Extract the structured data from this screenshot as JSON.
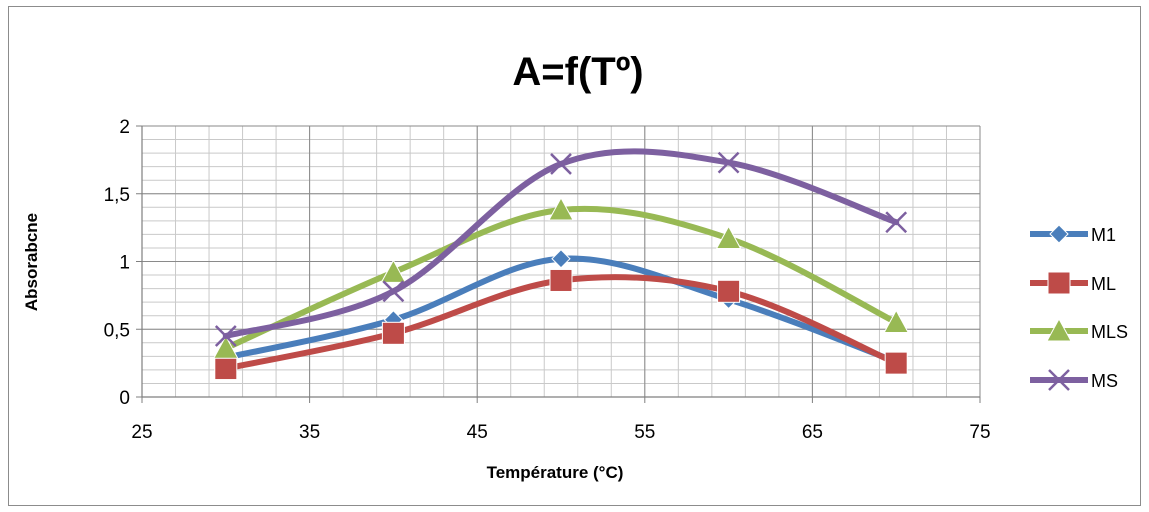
{
  "chart_data": {
    "type": "line",
    "title": "A=f(Tº)",
    "xlabel": "Température (°C)",
    "ylabel": "Absorabcne",
    "xlim": [
      25,
      75
    ],
    "ylim": [
      0,
      2
    ],
    "x_major_ticks": [
      25,
      35,
      45,
      55,
      65,
      75
    ],
    "x_tick_labels": [
      "25",
      "35",
      "45",
      "55",
      "65",
      "75"
    ],
    "y_major_ticks": [
      0,
      0.5,
      1,
      1.5,
      2
    ],
    "y_tick_labels": [
      "0",
      "0,5",
      "1",
      "1,5",
      "2"
    ],
    "grid": true,
    "smooth": true,
    "legend_position": "right",
    "x": [
      30,
      40,
      50,
      60,
      70
    ],
    "series": [
      {
        "name": "M1",
        "values": [
          0.29,
          0.57,
          1.02,
          0.72,
          0.26
        ],
        "color": "#4a7ebb",
        "marker": "diamond"
      },
      {
        "name": "ML",
        "values": [
          0.21,
          0.47,
          0.86,
          0.78,
          0.25
        ],
        "color": "#be4b48",
        "marker": "square"
      },
      {
        "name": "MLS",
        "values": [
          0.36,
          0.92,
          1.38,
          1.17,
          0.55
        ],
        "color": "#98b954",
        "marker": "triangle"
      },
      {
        "name": "MS",
        "values": [
          0.45,
          0.78,
          1.72,
          1.73,
          1.29
        ],
        "color": "#7d60a0",
        "marker": "x"
      }
    ]
  }
}
